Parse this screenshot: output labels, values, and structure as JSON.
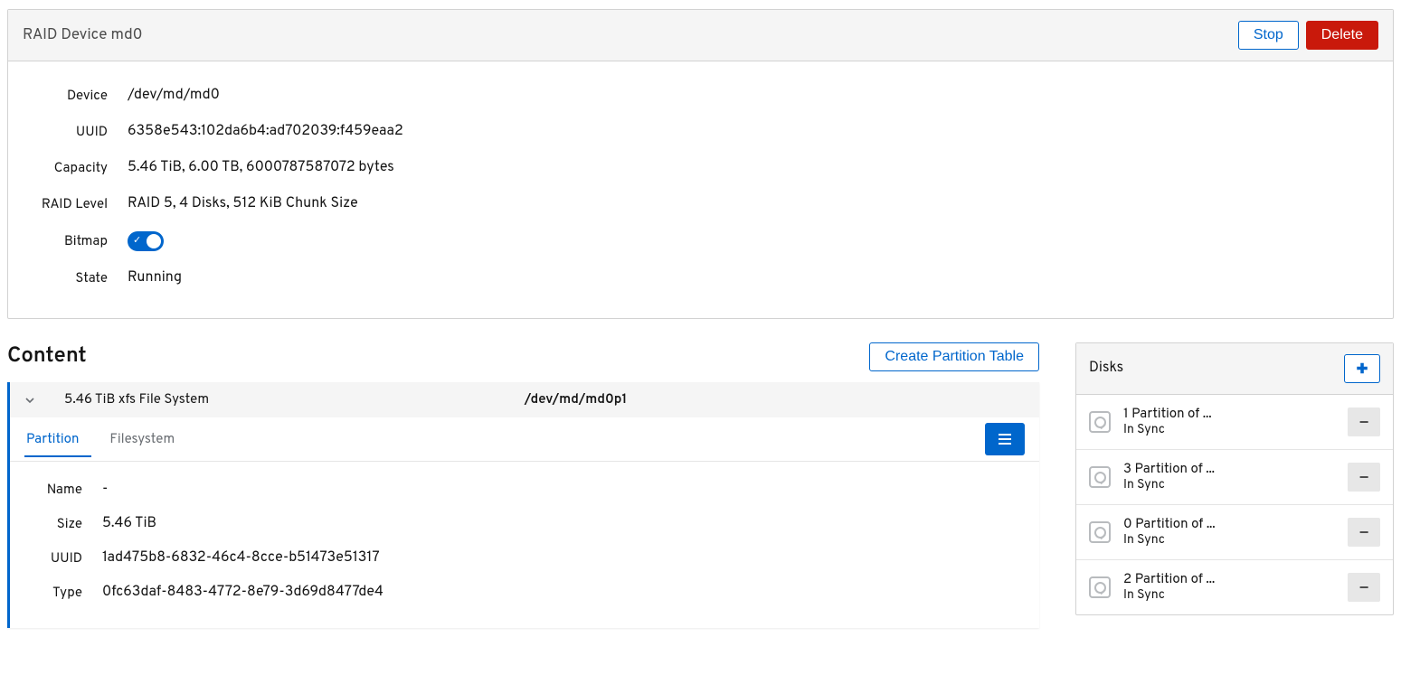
{
  "raid": {
    "title": "RAID Device md0",
    "stop_label": "Stop",
    "delete_label": "Delete",
    "fields": {
      "device_label": "Device",
      "device_value": "/dev/md/md0",
      "uuid_label": "UUID",
      "uuid_value": "6358e543:102da6b4:ad702039:f459eaa2",
      "capacity_label": "Capacity",
      "capacity_value": "5.46 TiB, 6.00 TB, 6000787587072 bytes",
      "raidlevel_label": "RAID Level",
      "raidlevel_value": "RAID 5, 4 Disks, 512 KiB Chunk Size",
      "bitmap_label": "Bitmap",
      "bitmap_value": true,
      "state_label": "State",
      "state_value": "Running"
    }
  },
  "content": {
    "title": "Content",
    "create_partition_label": "Create Partition Table",
    "fs_row": {
      "description": "5.46 TiB xfs File System",
      "path": "/dev/md/md0p1"
    },
    "tabs": {
      "partition": "Partition",
      "filesystem": "Filesystem",
      "active": "partition"
    },
    "partition": {
      "name_label": "Name",
      "name_value": "-",
      "size_label": "Size",
      "size_value": "5.46 TiB",
      "uuid_label": "UUID",
      "uuid_value": "1ad475b8-6832-46c4-8cce-b51473e51317",
      "type_label": "Type",
      "type_value": "0fc63daf-8483-4772-8e79-3d69d8477de4"
    }
  },
  "disks": {
    "title": "Disks",
    "items": [
      {
        "title": "1 Partition of ...",
        "status": "In Sync"
      },
      {
        "title": "3 Partition of ...",
        "status": "In Sync"
      },
      {
        "title": "0 Partition of ...",
        "status": "In Sync"
      },
      {
        "title": "2 Partition of ...",
        "status": "In Sync"
      }
    ]
  },
  "colors": {
    "primary": "#0066cc",
    "danger": "#c9190b",
    "border": "#d2d2d2",
    "muted_bg": "#f5f5f5"
  }
}
